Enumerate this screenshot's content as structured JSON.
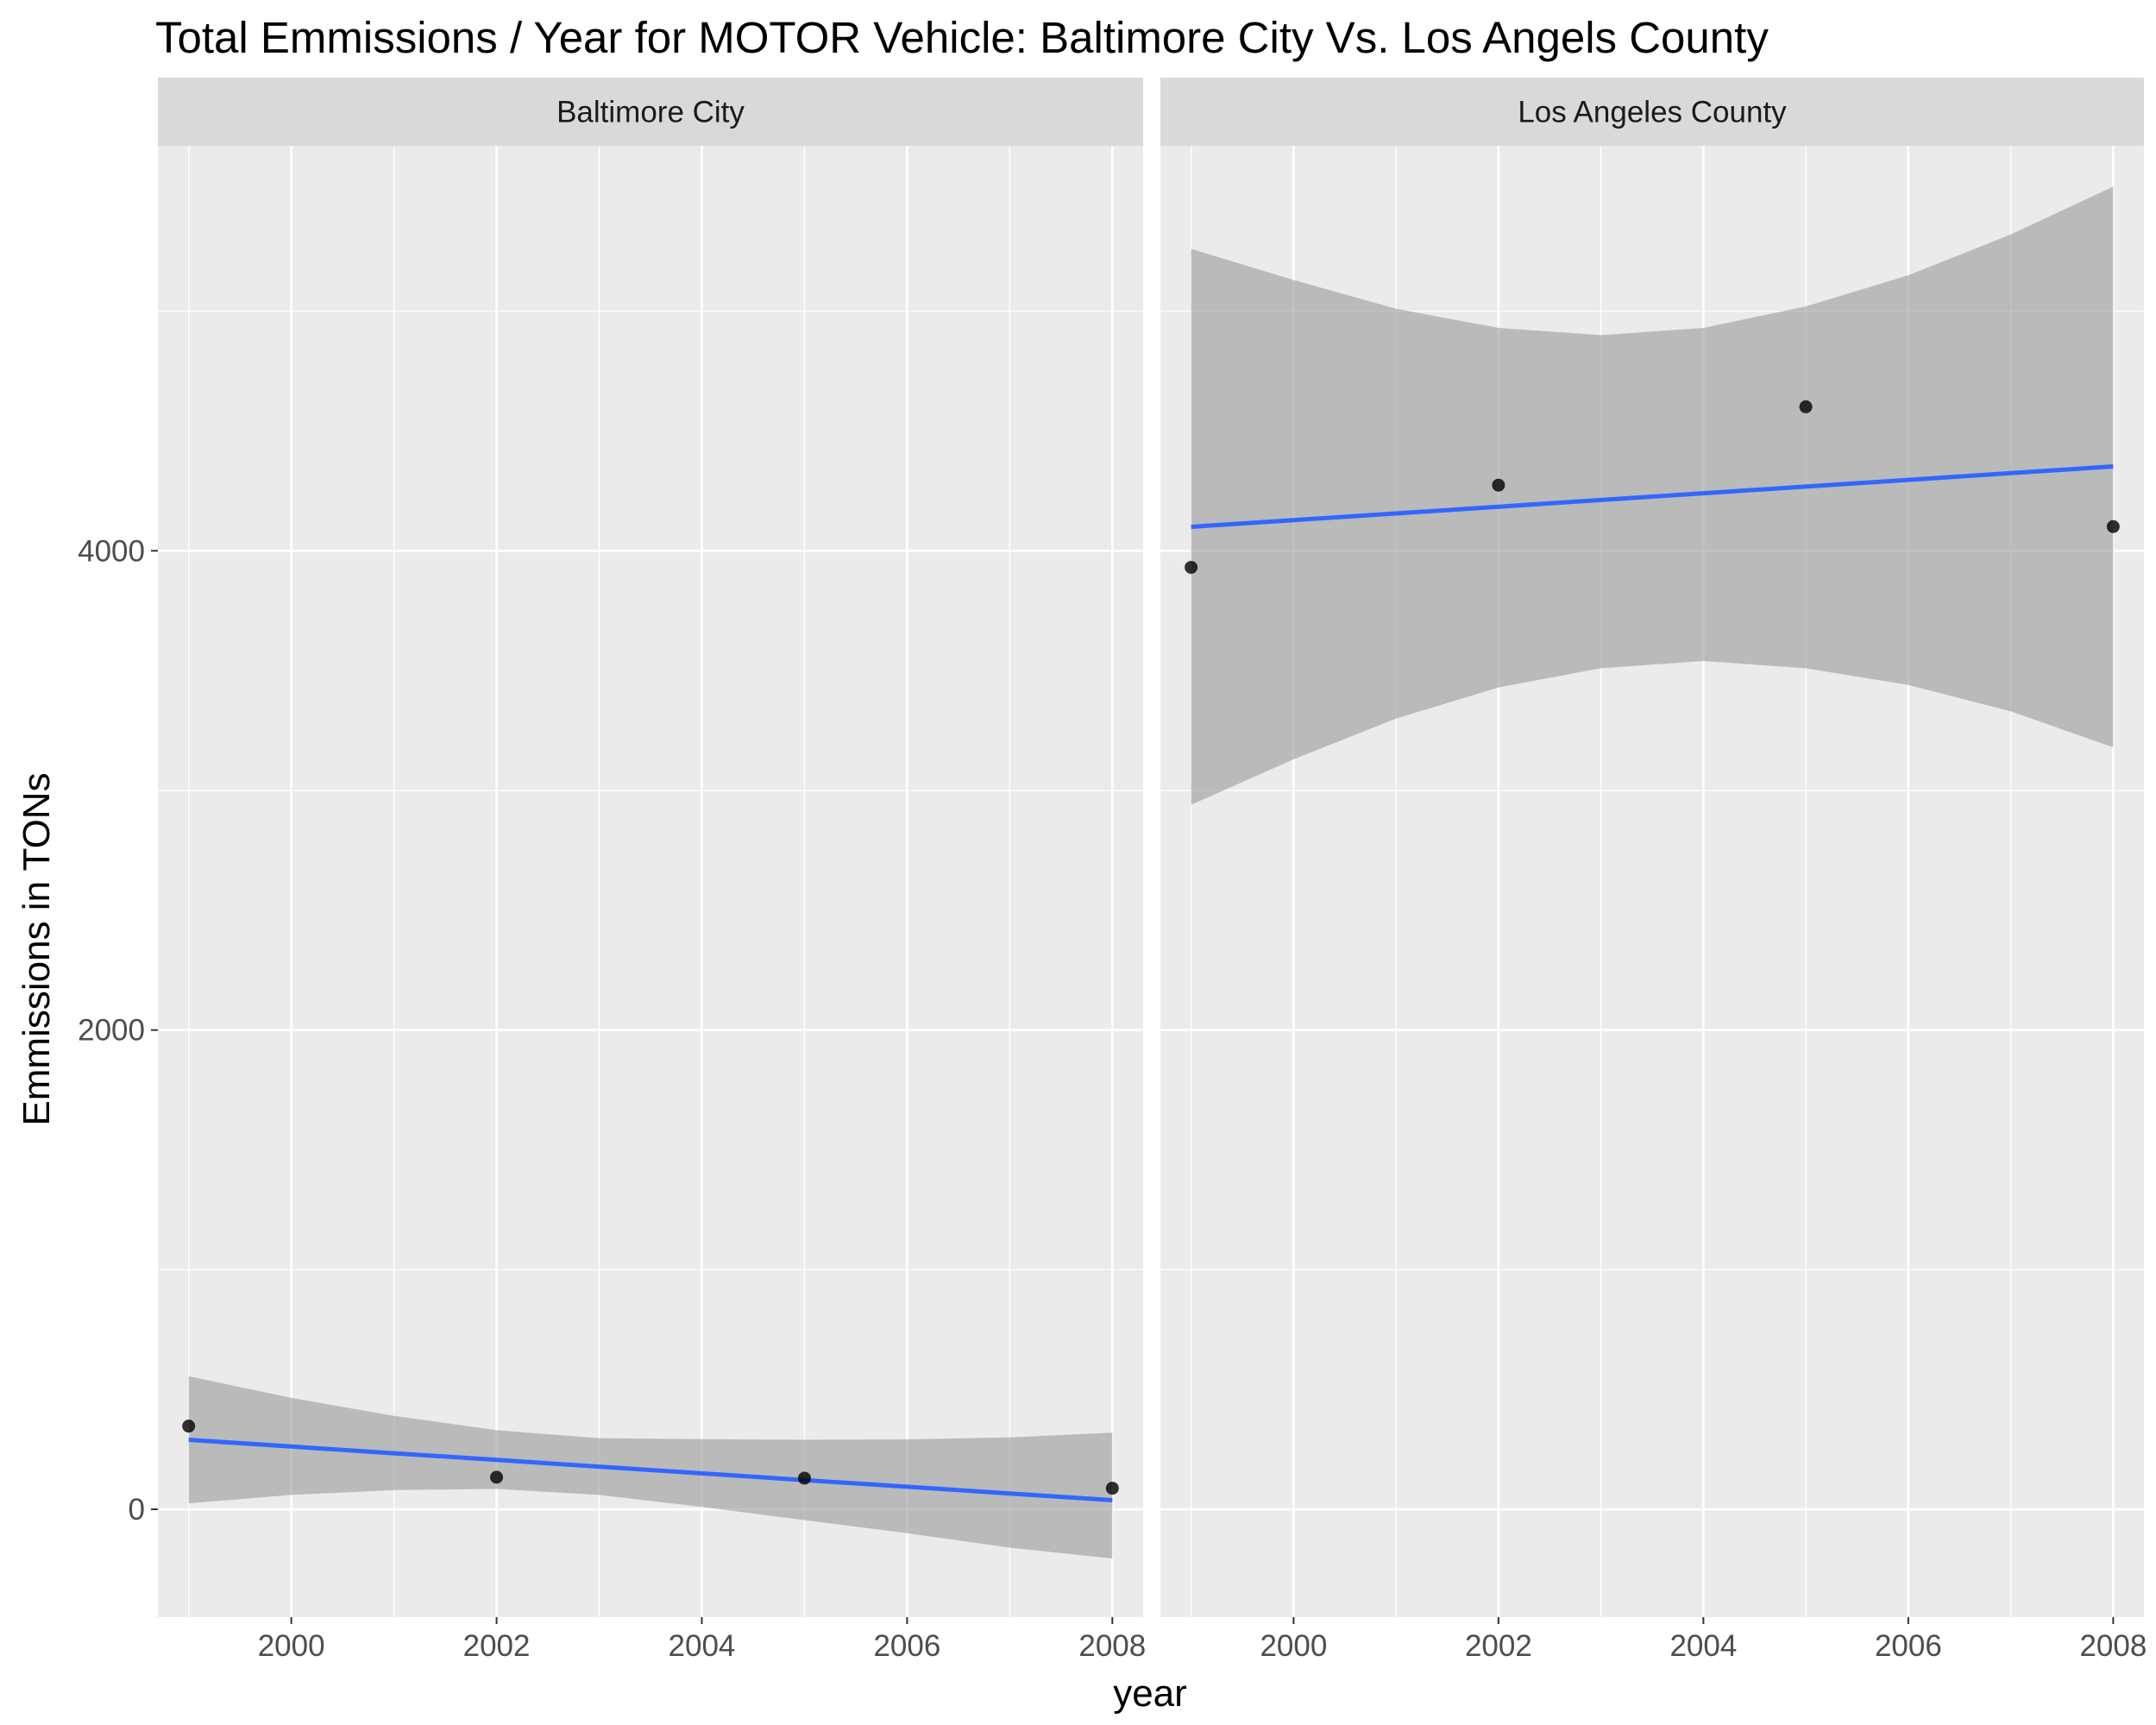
{
  "chart_data": {
    "type": "scatter",
    "title": "Total Emmissions / Year for MOTOR Vehicle: Baltimore City Vs. Los Angels County",
    "xlabel": "year",
    "ylabel": "Emmissions in TONs",
    "xlim": [
      1998.7,
      2008.3
    ],
    "ylim": [
      -450,
      5690
    ],
    "x_ticks": [
      2000,
      2002,
      2004,
      2006,
      2008
    ],
    "x_tick_labels": [
      "2000",
      "2002",
      "2004",
      "2006",
      "2008"
    ],
    "y_ticks": [
      0,
      2000,
      4000
    ],
    "y_tick_labels": [
      "0",
      "2000",
      "4000"
    ],
    "grid": true,
    "colors": {
      "panel_bg": "#ebebeb",
      "strip_bg": "#d9d9d9",
      "grid": "#ffffff",
      "point": "#000000",
      "fit_line": "#3366ff",
      "confidence_band": "#999999"
    },
    "panels": [
      {
        "strip_label": "Baltimore City",
        "points": [
          {
            "x": 1999,
            "y": 347
          },
          {
            "x": 2002,
            "y": 134
          },
          {
            "x": 2005,
            "y": 130
          },
          {
            "x": 2008,
            "y": 88
          }
        ],
        "fit": {
          "x": [
            1999,
            2000,
            2001,
            2002,
            2003,
            2004,
            2005,
            2006,
            2007,
            2008
          ],
          "y": [
            290,
            262,
            234,
            206,
            178,
            150,
            122,
            94,
            66,
            38
          ],
          "lower": [
            25,
            60,
            80,
            85,
            60,
            10,
            -45,
            -100,
            -160,
            -205
          ],
          "upper": [
            555,
            465,
            390,
            330,
            297,
            293,
            290,
            292,
            300,
            320
          ]
        }
      },
      {
        "strip_label": "Los Angeles County",
        "points": [
          {
            "x": 1999,
            "y": 3931
          },
          {
            "x": 2002,
            "y": 4274
          },
          {
            "x": 2005,
            "y": 4601
          },
          {
            "x": 2008,
            "y": 4101
          }
        ],
        "fit": {
          "x": [
            1999,
            2000,
            2001,
            2002,
            2003,
            2004,
            2005,
            2006,
            2007,
            2008
          ],
          "y": [
            4100,
            4128,
            4156,
            4184,
            4212,
            4240,
            4268,
            4296,
            4324,
            4352
          ],
          "lower": [
            2940,
            3130,
            3300,
            3430,
            3510,
            3540,
            3510,
            3440,
            3330,
            3180
          ],
          "upper": [
            5260,
            5130,
            5010,
            4930,
            4900,
            4930,
            5020,
            5150,
            5320,
            5520
          ]
        }
      }
    ]
  }
}
